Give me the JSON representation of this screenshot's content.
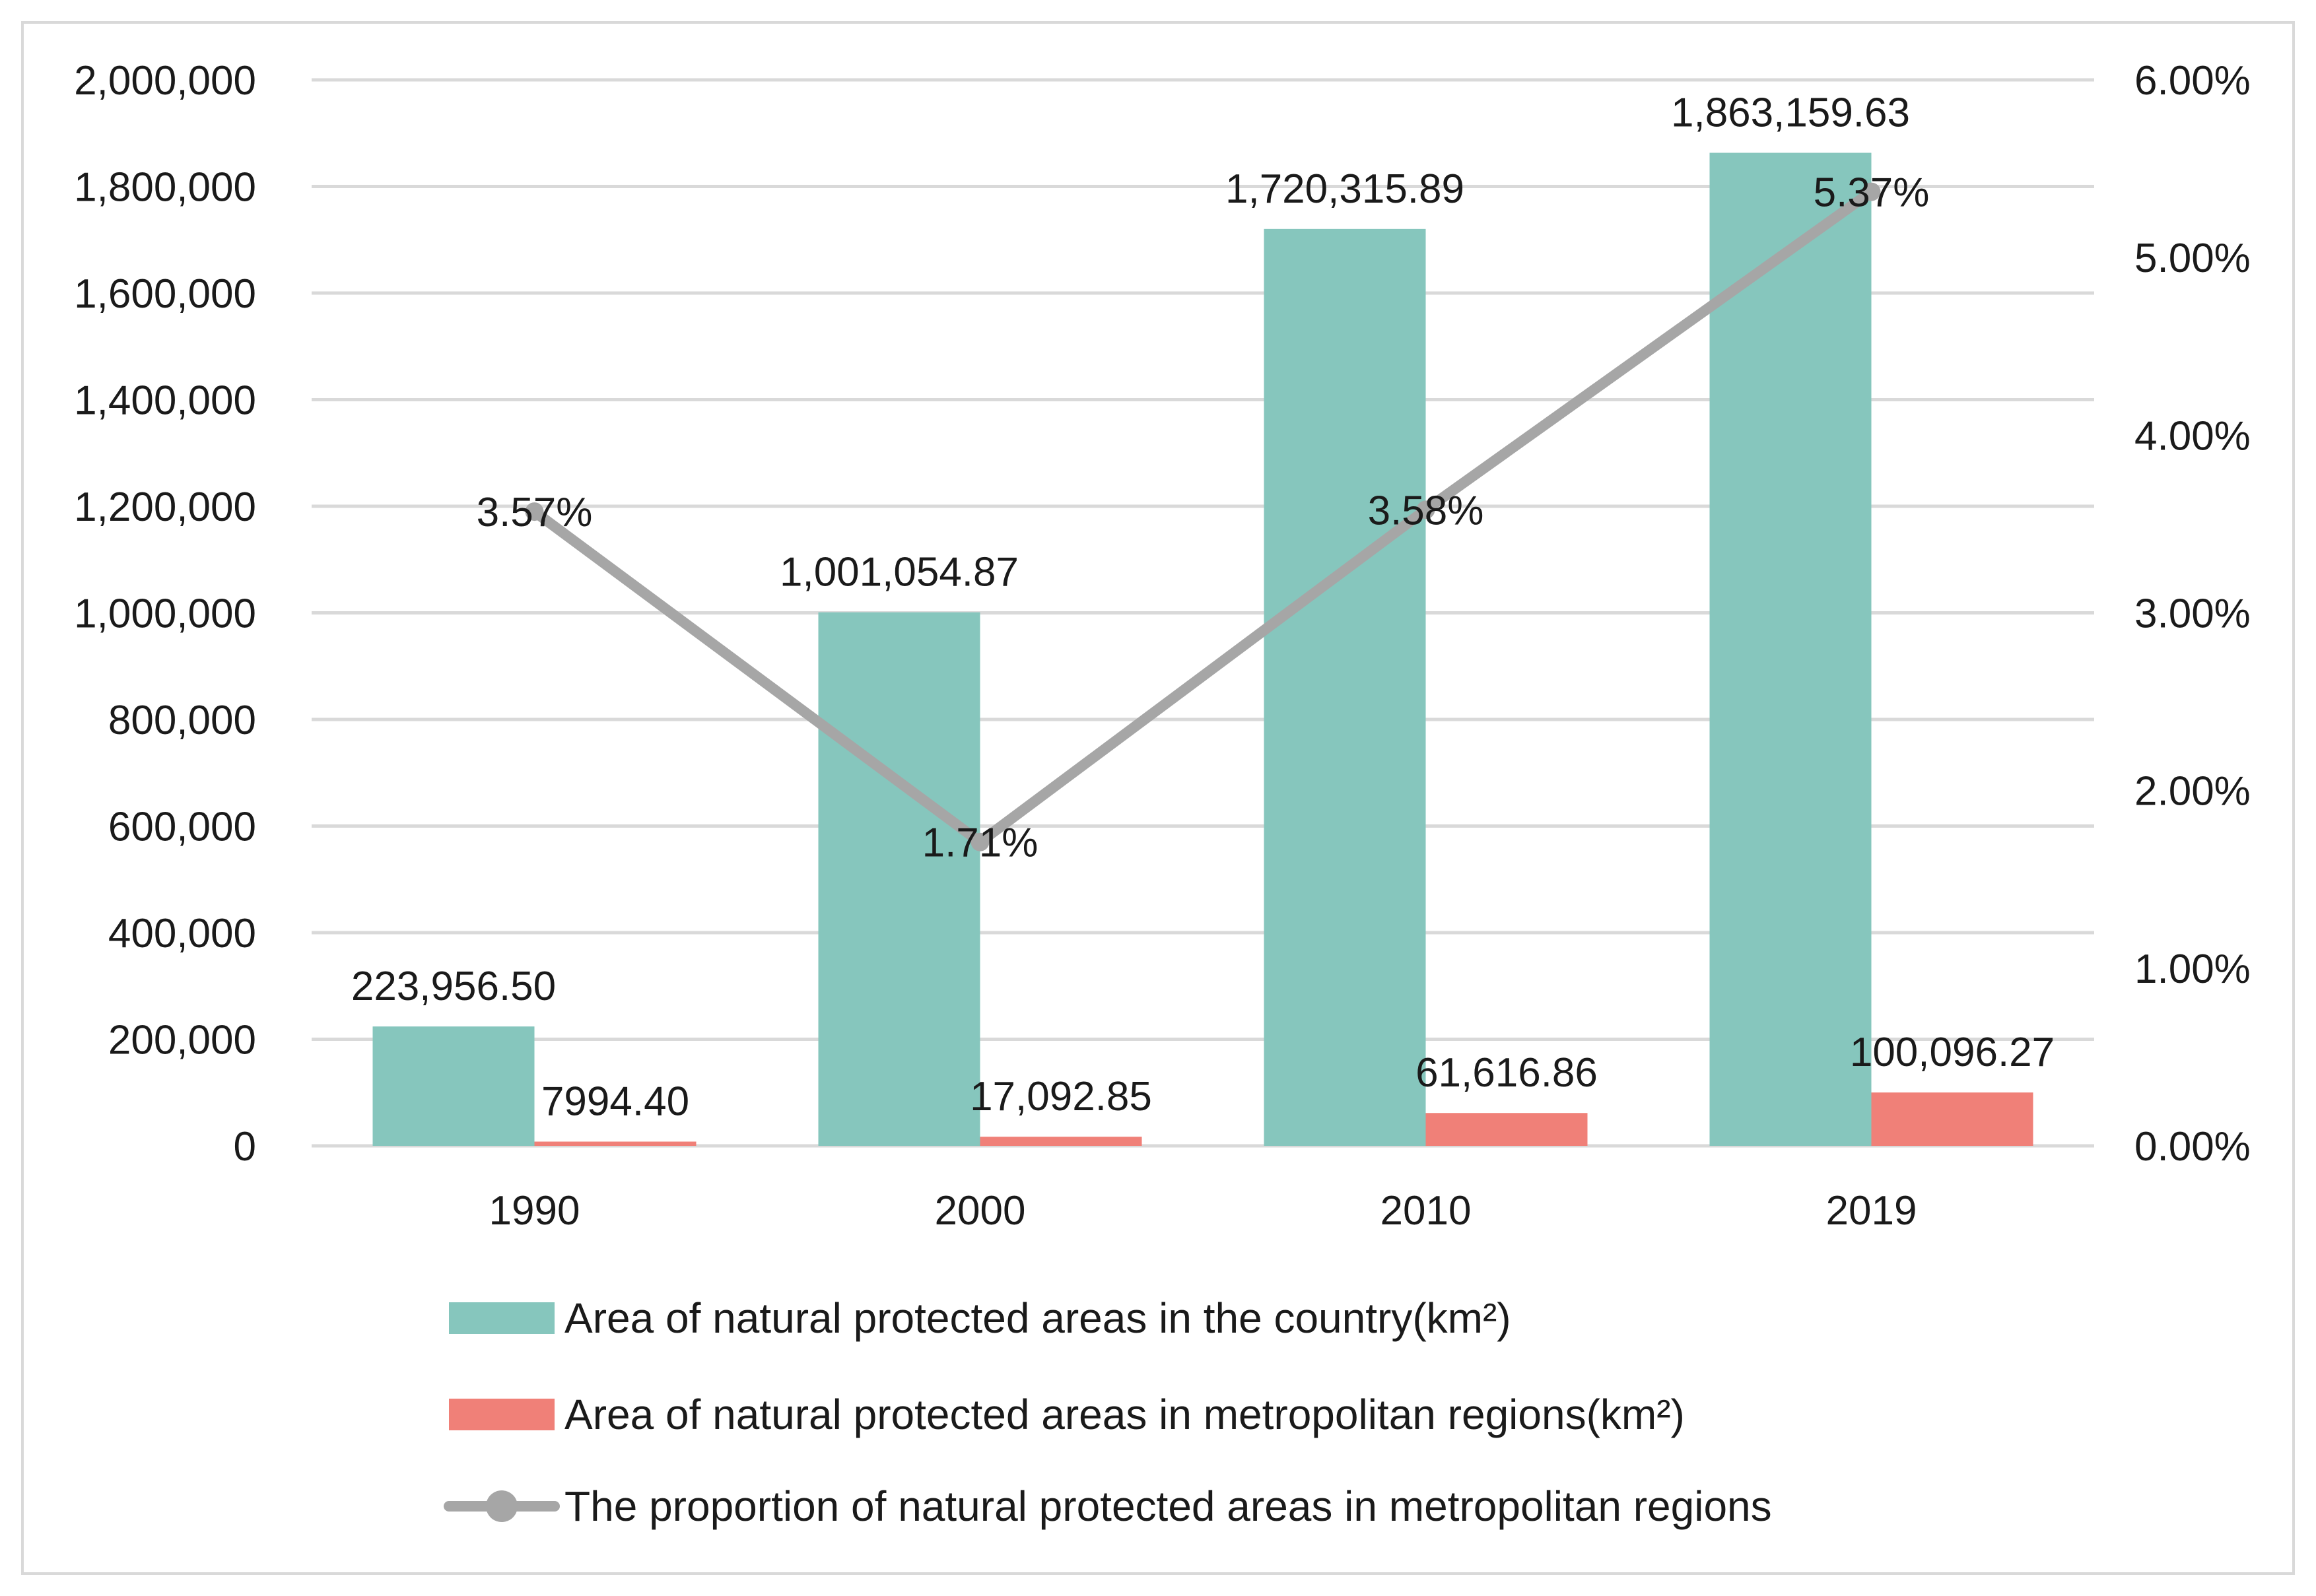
{
  "chart_data": {
    "type": "bar",
    "title": "",
    "xlabel": "",
    "ylabel": "",
    "categories": [
      "1990",
      "2000",
      "2010",
      "2019"
    ],
    "series": [
      {
        "name": "Area of natural protected areas in the country(km²)",
        "type": "bar",
        "axis": "left",
        "color": "#86c6bd",
        "values": [
          223956.5,
          1001054.87,
          1720315.89,
          1863159.63
        ],
        "labels": [
          "223,956.50",
          "1,001,054.87",
          "1,720,315.89",
          "1,863,159.63"
        ]
      },
      {
        "name": "Area of natural protected areas in metropolitan regions(km²)",
        "type": "bar",
        "axis": "left",
        "color": "#f08078",
        "values": [
          7994.4,
          17092.85,
          61616.86,
          100096.27
        ],
        "labels": [
          "7994.40",
          "17,092.85",
          "61,616.86",
          "100,096.27"
        ]
      },
      {
        "name": "The proportion of natural protected areas in metropolitan regions",
        "type": "line",
        "axis": "right",
        "color": "#a6a6a6",
        "values": [
          3.57,
          1.71,
          3.58,
          5.37
        ],
        "labels": [
          "3.57%",
          "1.71%",
          "3.58%",
          "5.37%"
        ]
      }
    ],
    "y_left": {
      "ylim": [
        0,
        2000000
      ],
      "ticks": [
        0,
        200000,
        400000,
        600000,
        800000,
        1000000,
        1200000,
        1400000,
        1600000,
        1800000,
        2000000
      ],
      "tick_labels": [
        "0",
        "200,000",
        "400,000",
        "600,000",
        "800,000",
        "1,000,000",
        "1,200,000",
        "1,400,000",
        "1,600,000",
        "1,800,000",
        "2,000,000"
      ]
    },
    "y_right": {
      "ylim": [
        0,
        6
      ],
      "ticks": [
        0,
        1,
        2,
        3,
        4,
        5,
        6
      ],
      "tick_labels": [
        "0.00%",
        "1.00%",
        "2.00%",
        "3.00%",
        "4.00%",
        "5.00%",
        "6.00%"
      ]
    },
    "grid": true,
    "legend": "bottom",
    "gridline_color": "#d9d9d9"
  }
}
